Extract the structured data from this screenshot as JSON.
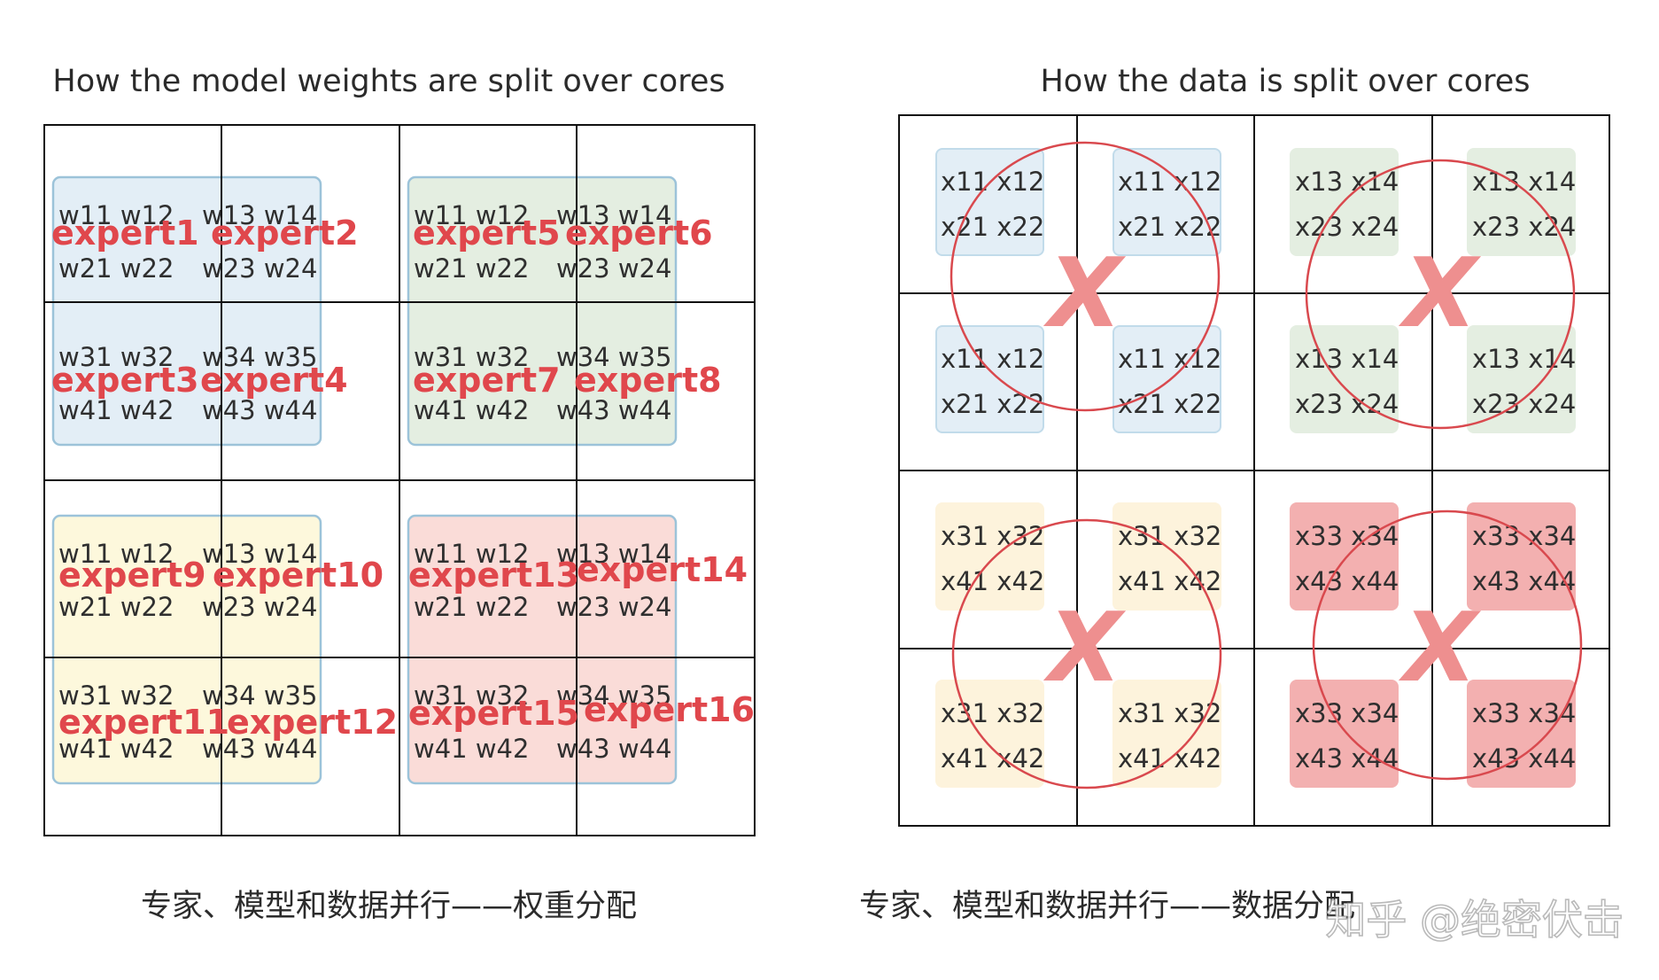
{
  "left_panel": {
    "title": "How the model weights are split over cores",
    "caption": "专家、模型和数据并行——权重分配",
    "blocks": [
      {
        "color": "#e3eef6",
        "cells": [
          {
            "row1": "w11 w12",
            "row2": "w21 w22",
            "expert": "expert1"
          },
          {
            "row1": "w13 w14",
            "row2": "w23 w24",
            "expert": "expert2"
          },
          {
            "row1": "w31 w32",
            "row2": "w41 w42",
            "expert": "expert3"
          },
          {
            "row1": "w34 w35",
            "row2": "w43 w44",
            "expert": "expert4"
          }
        ]
      },
      {
        "color": "#e4eee1",
        "cells": [
          {
            "row1": "w11 w12",
            "row2": "w21 w22",
            "expert": "expert5"
          },
          {
            "row1": "w13 w14",
            "row2": "w23 w24",
            "expert": "expert6"
          },
          {
            "row1": "w31 w32",
            "row2": "w41 w42",
            "expert": "expert7"
          },
          {
            "row1": "w34 w35",
            "row2": "w43 w44",
            "expert": "expert8"
          }
        ]
      },
      {
        "color": "#fdf8dc",
        "cells": [
          {
            "row1": "w11 w12",
            "row2": "w21 w22",
            "expert": "expert9"
          },
          {
            "row1": "w13 w14",
            "row2": "w23 w24",
            "expert": "expert10"
          },
          {
            "row1": "w31 w32",
            "row2": "w41 w42",
            "expert": "expert11"
          },
          {
            "row1": "w34 w35",
            "row2": "w43 w44",
            "expert": "expert12"
          }
        ]
      },
      {
        "color": "#fadcd8",
        "cells": [
          {
            "row1": "w11 w12",
            "row2": "w21 w22",
            "expert": "expert13"
          },
          {
            "row1": "w13 w14",
            "row2": "w23 w24",
            "expert": "expert14"
          },
          {
            "row1": "w31 w32",
            "row2": "w41 w42",
            "expert": "expert15"
          },
          {
            "row1": "w34 w35",
            "row2": "w43 w44",
            "expert": "expert16"
          }
        ]
      }
    ]
  },
  "right_panel": {
    "title": "How the data is split over cores",
    "caption": "专家、模型和数据并行——数据分配",
    "multiply_symbol": "X",
    "blocks": [
      {
        "color": "#e3eef6",
        "row1": "x11 x12",
        "row2": "x21 x22"
      },
      {
        "color": "#e4eee1",
        "row1": "x13 x14",
        "row2": "x23 x24"
      },
      {
        "color": "#fdf3dc",
        "row1": "x31 x32",
        "row2": "x41 x42"
      },
      {
        "color": "#f3b0b0",
        "row1": "x33 x34",
        "row2": "x43 x44"
      }
    ]
  },
  "watermark": "知乎 @绝密伏击",
  "colors": {
    "expert_label": "#e0474c",
    "circle": "#d9494e",
    "grid": "#111111"
  }
}
